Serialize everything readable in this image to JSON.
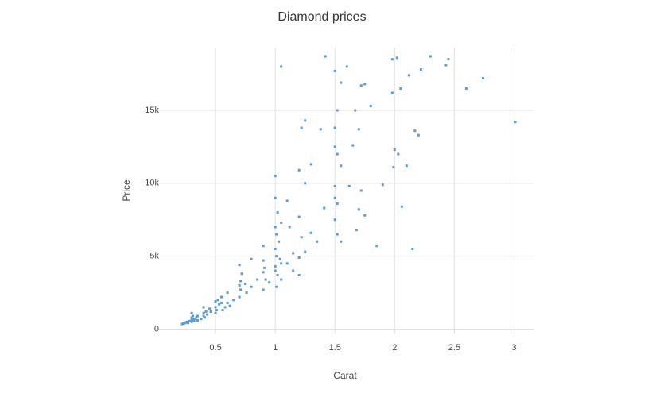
{
  "chart_data": {
    "type": "scatter",
    "title": "Diamond prices",
    "x_label": "Carat",
    "y_label": "Price",
    "xlim": [
      0,
      3.17
    ],
    "ylim": [
      -300,
      19300
    ],
    "xticks": [
      0.5,
      1,
      1.5,
      2,
      2.5,
      3
    ],
    "yticks": [
      0,
      {
        "value": 5000,
        "label": "5k"
      },
      {
        "value": 10000,
        "label": "10k"
      },
      {
        "value": 15000,
        "label": "15k"
      }
    ],
    "grid": true,
    "color": "#5b9bd5",
    "x": [
      1.42,
      1.05,
      1.98,
      2.02,
      2.3,
      2.45,
      2.43,
      2.74,
      2.6,
      3.01,
      2.22,
      2.12,
      1.6,
      1.5,
      1.55,
      1.72,
      1.75,
      1.98,
      2.05,
      1.8,
      1.67,
      1.52,
      1.25,
      1.22,
      1.38,
      1.5,
      1.7,
      2.17,
      2.2,
      1.5,
      1.52,
      1.65,
      2.0,
      2.03,
      2.1,
      1.99,
      1.55,
      1.3,
      1.2,
      1.0,
      1.25,
      1.5,
      1.62,
      1.72,
      1.9,
      1.5,
      1.52,
      1.41,
      1.7,
      1.75,
      2.06,
      1.5,
      1.52,
      1.55,
      1.68,
      1.85,
      2.15,
      1.0,
      1.02,
      1.05,
      1.1,
      1.12,
      1.2,
      1.22,
      1.3,
      1.35,
      1.25,
      1.0,
      1.01,
      1.03,
      1.0,
      1.01,
      1.04,
      1.05,
      1.0,
      1.0,
      1.02,
      1.1,
      1.15,
      1.2,
      1.05,
      0.9,
      0.9,
      0.9,
      0.92,
      0.95,
      0.8,
      0.7,
      0.72,
      0.71,
      0.7,
      0.71,
      0.75,
      0.76,
      0.8,
      0.85,
      0.9,
      0.6,
      0.55,
      0.55,
      0.52,
      0.5,
      0.5,
      0.51,
      0.53,
      0.6,
      0.65,
      0.58,
      0.45,
      0.42,
      0.4,
      0.4,
      0.41,
      0.35,
      0.34,
      0.33,
      0.32,
      0.31,
      0.3,
      0.3,
      0.28,
      0.26,
      0.25,
      0.24,
      0.23,
      0.22,
      0.27,
      0.3,
      0.31,
      0.35,
      0.38,
      0.43,
      0.46,
      0.5,
      0.7,
      0.62,
      0.56,
      0.91,
      1.01,
      1.2,
      1.15,
      0.3,
      0.4
    ],
    "values": [
      18700,
      18000,
      18500,
      18600,
      18700,
      18500,
      18100,
      17200,
      16500,
      14200,
      17800,
      17400,
      18000,
      17700,
      16900,
      16700,
      16800,
      16200,
      16500,
      15300,
      15000,
      15000,
      14300,
      13800,
      13700,
      13800,
      13700,
      13600,
      13300,
      12500,
      12000,
      12600,
      12300,
      12000,
      11200,
      11100,
      11200,
      11300,
      10900,
      10500,
      10000,
      9800,
      9800,
      9500,
      9900,
      9000,
      8600,
      8300,
      8200,
      7800,
      8400,
      7500,
      6500,
      6000,
      6800,
      5700,
      5500,
      9000,
      8000,
      7300,
      8800,
      7000,
      7700,
      6300,
      6600,
      6000,
      5300,
      7000,
      6500,
      6000,
      5500,
      5000,
      4800,
      4500,
      4300,
      4000,
      3700,
      4500,
      5200,
      4900,
      3400,
      5700,
      4700,
      3900,
      3400,
      3200,
      4800,
      4400,
      3800,
      3300,
      3000,
      2700,
      3100,
      2500,
      2900,
      3400,
      2700,
      2500,
      2200,
      1800,
      2000,
      1900,
      1500,
      1300,
      1700,
      1800,
      2000,
      1500,
      1400,
      1200,
      1100,
      900,
      800,
      900,
      800,
      700,
      600,
      700,
      650,
      500,
      550,
      500,
      450,
      400,
      380,
      350,
      420,
      800,
      900,
      600,
      700,
      1000,
      1200,
      1100,
      2200,
      1600,
      1300,
      4200,
      2900,
      3700,
      4000,
      1100,
      1500
    ]
  }
}
